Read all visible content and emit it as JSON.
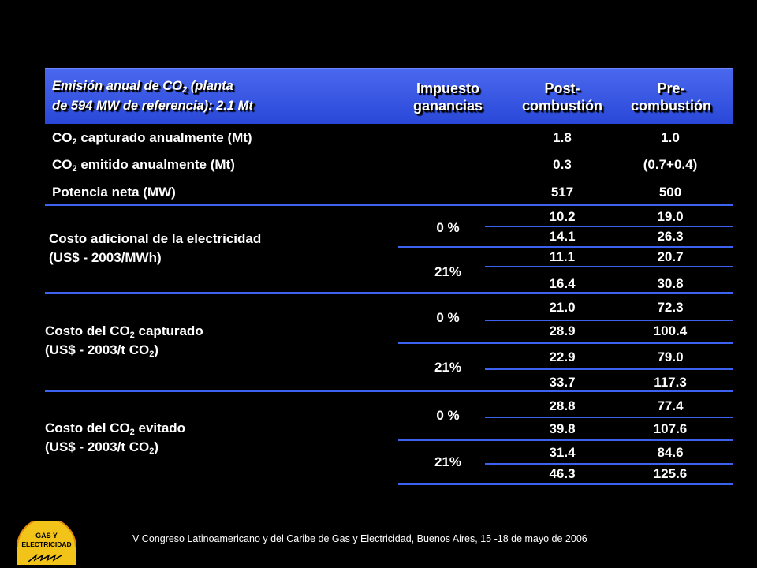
{
  "header": {
    "title_line1_pre": "Emisión anual de CO",
    "title_line1_sub": "2",
    "title_line1_post": " (planta",
    "title_line2": "de 594 MW de referencia): 2.1 Mt",
    "col1_line1": "Impuesto",
    "col1_line2": "ganancias",
    "col2_line1": "Post-",
    "col2_line2": "combustión",
    "col3_line1": "Pre-",
    "col3_line2": "combustión"
  },
  "rows": [
    {
      "label_pre": "CO",
      "label_sub": "2",
      "label_post": " capturado anualmente (Mt)",
      "post": "1.8",
      "pre": "1.0"
    },
    {
      "label_pre": "CO",
      "label_sub": "2",
      "label_post": " emitido anualmente (Mt)",
      "post": "0.3",
      "pre": "(0.7+0.4)"
    },
    {
      "label_pre": "Potencia neta (MW)",
      "label_sub": "",
      "label_post": "",
      "post": "517",
      "pre": "500"
    }
  ],
  "groups": [
    {
      "line1_pre": "Costo adicional de la electricidad",
      "line1_sub": "",
      "line1_post": "",
      "line2_pre": "(US$ - 2003/MWh)",
      "line2_sub": "",
      "line2_post": "",
      "tax_a": "0 %",
      "tax_b": "21%",
      "values": [
        [
          "10.2",
          "19.0"
        ],
        [
          "14.1",
          "26.3"
        ],
        [
          "11.1",
          "20.7"
        ],
        [
          "16.4",
          "30.8"
        ]
      ]
    },
    {
      "line1_pre": "Costo del CO",
      "line1_sub": "2",
      "line1_post": " capturado",
      "line2_pre": "(US$ - 2003/t CO",
      "line2_sub": "2",
      "line2_post": ")",
      "tax_a": "0 %",
      "tax_b": "21%",
      "values": [
        [
          "21.0",
          "72.3"
        ],
        [
          "28.9",
          "100.4"
        ],
        [
          "22.9",
          "79.0"
        ],
        [
          "33.7",
          "117.3"
        ]
      ]
    },
    {
      "line1_pre": "Costo del CO",
      "line1_sub": "2",
      "line1_post": " evitado",
      "line2_pre": "(US$ - 2003/t CO",
      "line2_sub": "2",
      "line2_post": ")",
      "tax_a": "0 %",
      "tax_b": "21%",
      "values": [
        [
          "28.8",
          "77.4"
        ],
        [
          "39.8",
          "107.6"
        ],
        [
          "31.4",
          "84.6"
        ],
        [
          "46.3",
          "125.6"
        ]
      ]
    }
  ],
  "footer": {
    "text": "V Congreso Latinoamericano y del Caribe de Gas y Electricidad, Buenos Aires, 15 -18 de mayo de 2006"
  },
  "logo": {
    "line1": "GAS Y",
    "line2": "ELECTRICIDAD"
  },
  "colors": {
    "background": "#000000",
    "header_band": "#3554e2",
    "rule_lines": "#3d62f0",
    "logo_yellow": "#f2c318"
  }
}
